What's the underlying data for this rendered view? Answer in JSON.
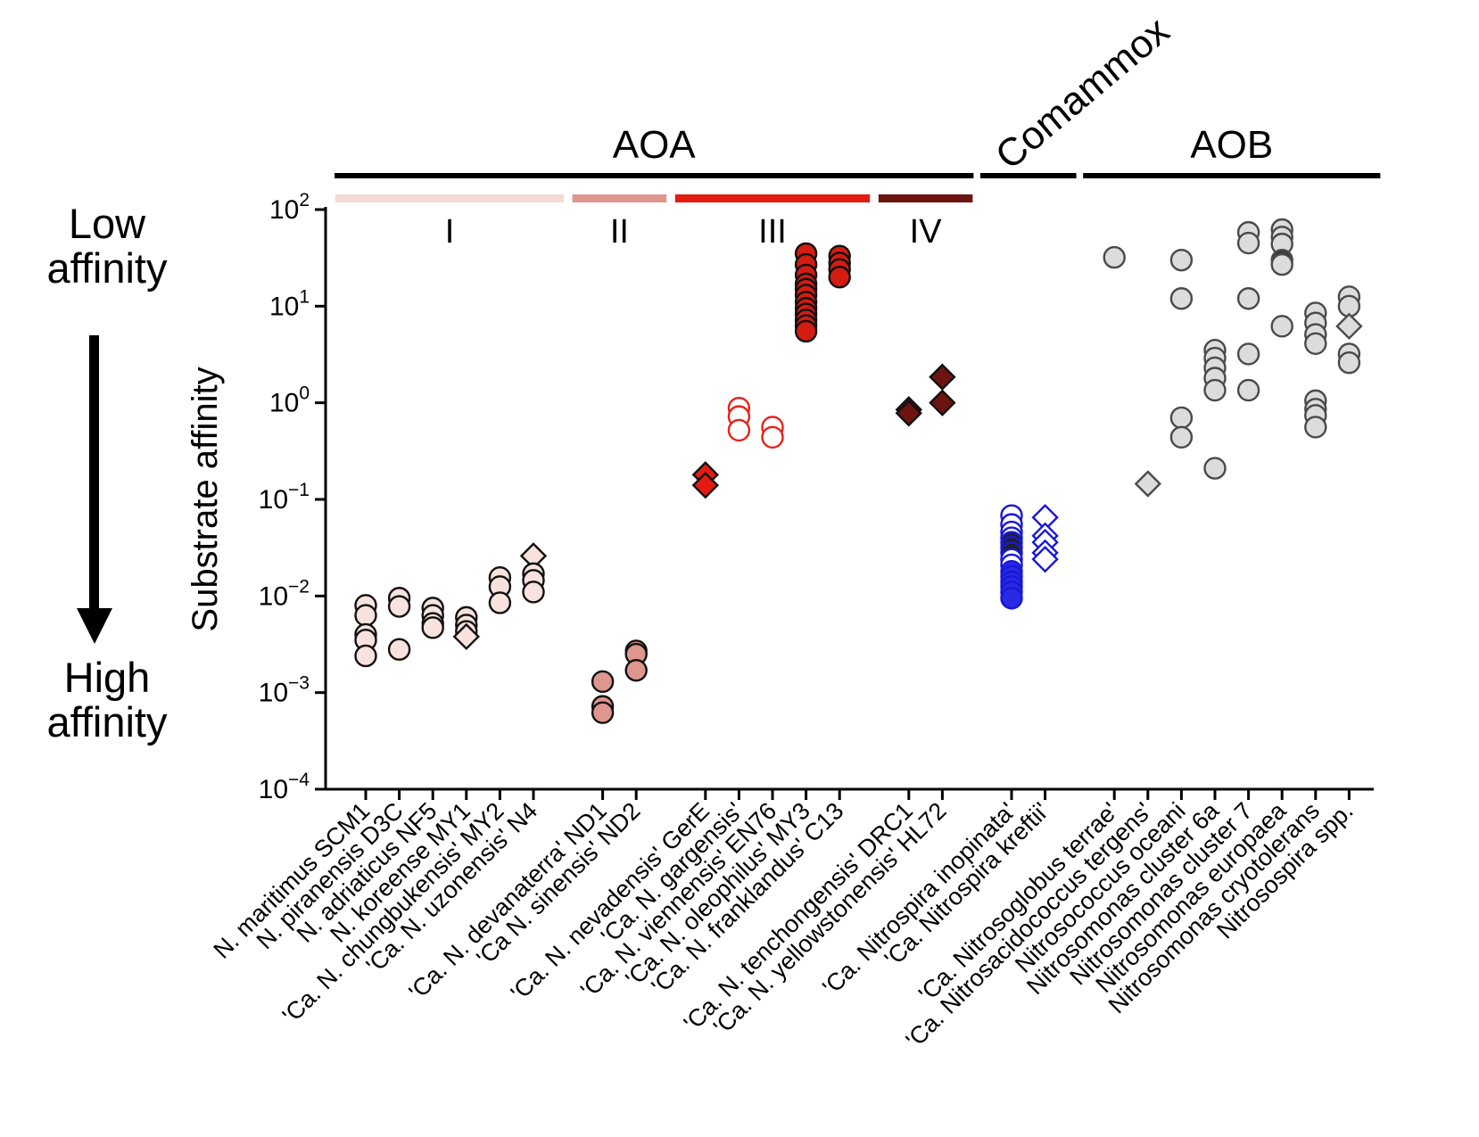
{
  "labels": {
    "low_affinity": "Low\naffinity",
    "high_affinity": "High\naffinity"
  },
  "chart_data": {
    "type": "scatter",
    "y_axis": {
      "label": "Substrate affinity",
      "log_min": -4,
      "log_max": 2,
      "tick_exponents": [
        2,
        1,
        0,
        -1,
        -2,
        -3,
        -4
      ]
    },
    "groups": [
      {
        "label": "AOA",
        "rotated_title": false,
        "clades": [
          {
            "label": "I",
            "bar_color": "#f4d9d5",
            "species": [
              {
                "label": "N. maritimus SCM1",
                "marker": {
                  "shape": "circle",
                  "fill": "#f7e2de",
                  "stroke": "#111111"
                },
                "points": [
                  {
                    "v": 0.008
                  },
                  {
                    "v": 0.0063
                  },
                  {
                    "v": 0.004
                  },
                  {
                    "v": 0.0035
                  },
                  {
                    "v": 0.0024
                  }
                ]
              },
              {
                "label": "N. piranensis D3C",
                "marker": {
                  "shape": "circle",
                  "fill": "#f7e2de",
                  "stroke": "#111111"
                },
                "points": [
                  {
                    "v": 0.0095
                  },
                  {
                    "v": 0.0078
                  },
                  {
                    "v": 0.0028
                  }
                ]
              },
              {
                "label": "N. adriaticus NF5",
                "marker": {
                  "shape": "circle",
                  "fill": "#f7e2de",
                  "stroke": "#111111"
                },
                "points": [
                  {
                    "v": 0.0075
                  },
                  {
                    "v": 0.0063
                  },
                  {
                    "v": 0.0052
                  },
                  {
                    "v": 0.0047
                  }
                ]
              },
              {
                "label": "N. koreense MY1",
                "marker": {
                  "shape": "circle",
                  "fill": "#f7e2de",
                  "stroke": "#111111"
                },
                "points": [
                  {
                    "v": 0.006
                  },
                  {
                    "v": 0.005
                  },
                  {
                    "v": 0.0043
                  },
                  {
                    "v": 0.0038,
                    "shape": "diamond"
                  }
                ]
              },
              {
                "label": "'Ca. N. chungbukensis' MY2",
                "marker": {
                  "shape": "circle",
                  "fill": "#f7e2de",
                  "stroke": "#111111"
                },
                "points": [
                  {
                    "v": 0.0155
                  },
                  {
                    "v": 0.0125
                  },
                  {
                    "v": 0.0085
                  }
                ]
              },
              {
                "label": "'Ca. N. uzonensis' N4",
                "marker": {
                  "shape": "circle",
                  "fill": "#f7e2de",
                  "stroke": "#111111"
                },
                "points": [
                  {
                    "v": 0.026,
                    "shape": "diamond"
                  },
                  {
                    "v": 0.017
                  },
                  {
                    "v": 0.0145
                  },
                  {
                    "v": 0.011
                  }
                ]
              }
            ]
          },
          {
            "label": "II",
            "bar_color": "#de968f",
            "species": [
              {
                "label": "'Ca. N. devanaterra' ND1",
                "marker": {
                  "shape": "circle",
                  "fill": "#de968f",
                  "stroke": "#111111"
                },
                "points": [
                  {
                    "v": 0.0013
                  },
                  {
                    "v": 0.00072
                  },
                  {
                    "v": 0.00062
                  }
                ]
              },
              {
                "label": "'Ca N. sinensis' ND2",
                "marker": {
                  "shape": "circle",
                  "fill": "#de968f",
                  "stroke": "#111111"
                },
                "points": [
                  {
                    "v": 0.0027
                  },
                  {
                    "v": 0.0025
                  },
                  {
                    "v": 0.0017
                  }
                ]
              }
            ]
          },
          {
            "label": "III",
            "bar_color": "#e31b10",
            "species": [
              {
                "label": "'Ca. N. nevadensis' GerE",
                "marker": {
                  "shape": "diamond",
                  "fill": "#e31b10",
                  "stroke": "#111111"
                },
                "points": [
                  {
                    "v": 0.18
                  },
                  {
                    "v": 0.14
                  }
                ]
              },
              {
                "label": "'Ca. N. gargensis'",
                "marker": {
                  "shape": "circle",
                  "fill": "#ffffff",
                  "stroke": "#e3231a"
                },
                "points": [
                  {
                    "v": 0.88
                  },
                  {
                    "v": 0.72
                  },
                  {
                    "v": 0.52
                  }
                ]
              },
              {
                "label": "'Ca. N. viennensis' EN76",
                "marker": {
                  "shape": "circle",
                  "fill": "#ffffff",
                  "stroke": "#e3231a"
                },
                "points": [
                  {
                    "v": 0.56
                  },
                  {
                    "v": 0.44
                  }
                ]
              },
              {
                "label": "'Ca. N. oleophilus' MY3",
                "marker": {
                  "shape": "circle",
                  "fill": "#d41c11",
                  "stroke": "#111111"
                },
                "points": [
                  {
                    "v": 35
                  },
                  {
                    "v": 27
                  },
                  {
                    "v": 21
                  },
                  {
                    "v": 17
                  },
                  {
                    "v": 15
                  },
                  {
                    "v": 13
                  },
                  {
                    "v": 11
                  },
                  {
                    "v": 9.5
                  },
                  {
                    "v": 8.3
                  },
                  {
                    "v": 7.2
                  },
                  {
                    "v": 6.3
                  },
                  {
                    "v": 5.5
                  }
                ]
              },
              {
                "label": "'Ca. N. franklandus' C13",
                "marker": {
                  "shape": "circle",
                  "fill": "#d41c11",
                  "stroke": "#111111"
                },
                "points": [
                  {
                    "v": 33
                  },
                  {
                    "v": 28
                  },
                  {
                    "v": 24
                  },
                  {
                    "v": 20
                  }
                ]
              }
            ]
          },
          {
            "label": "IV",
            "bar_color": "#6e1410",
            "species": [
              {
                "label": "'Ca. N. tenchongensis' DRC1",
                "marker": {
                  "shape": "diamond",
                  "fill": "#6e1410",
                  "stroke": "#111111"
                },
                "points": [
                  {
                    "v": 0.85
                  },
                  {
                    "v": 0.78
                  }
                ]
              },
              {
                "label": "'Ca. N. yellowstonensis' HL72",
                "marker": {
                  "shape": "diamond",
                  "fill": "#6e1410",
                  "stroke": "#111111"
                },
                "points": [
                  {
                    "v": 1.85
                  },
                  {
                    "v": 1.0
                  }
                ]
              }
            ]
          }
        ]
      },
      {
        "label": "Comammox",
        "rotated_title": true,
        "clades": [
          {
            "label": "",
            "bar_color": null,
            "species": [
              {
                "label": "'Ca. Nitrospira inopinata'",
                "marker": {
                  "shape": "circle",
                  "fill": "#ffffff",
                  "stroke": "#1717dd"
                },
                "points": [
                  {
                    "v": 0.068
                  },
                  {
                    "v": 0.055
                  },
                  {
                    "v": 0.046
                  },
                  {
                    "v": 0.04
                  },
                  {
                    "v": 0.036,
                    "fill": "#222222"
                  },
                  {
                    "v": 0.032,
                    "fill": "#222222"
                  },
                  {
                    "v": 0.028,
                    "fill": "#222222"
                  },
                  {
                    "v": 0.024
                  },
                  {
                    "v": 0.021
                  },
                  {
                    "v": 0.018,
                    "fill": "#2a2ae2"
                  },
                  {
                    "v": 0.016,
                    "fill": "#2a2ae2"
                  },
                  {
                    "v": 0.014,
                    "fill": "#2a2ae2"
                  },
                  {
                    "v": 0.0125,
                    "fill": "#2a2ae2"
                  },
                  {
                    "v": 0.011,
                    "fill": "#2a2ae2"
                  },
                  {
                    "v": 0.0095,
                    "fill": "#2a2ae2"
                  }
                ]
              },
              {
                "label": "'Ca. Nitrospira kreftii'",
                "marker": {
                  "shape": "diamond",
                  "fill": "#ffffff",
                  "stroke": "#1717dd"
                },
                "points": [
                  {
                    "v": 0.065
                  },
                  {
                    "v": 0.042
                  },
                  {
                    "v": 0.036
                  },
                  {
                    "v": 0.028
                  },
                  {
                    "v": 0.024
                  }
                ]
              }
            ]
          }
        ]
      },
      {
        "label": "AOB",
        "rotated_title": false,
        "clades": [
          {
            "label": "",
            "bar_color": null,
            "species": [
              {
                "label": "'Ca. Nitrosoglobus terrae'",
                "marker": {
                  "shape": "circle",
                  "fill": "#dcdcdc",
                  "stroke": "#4a4a4a"
                },
                "points": [
                  {
                    "v": 32
                  }
                ]
              },
              {
                "label": "'Ca. Nitrosacidococcus tergens'",
                "marker": {
                  "shape": "diamond",
                  "fill": "#dcdcdc",
                  "stroke": "#4a4a4a"
                },
                "points": [
                  {
                    "v": 0.145
                  }
                ]
              },
              {
                "label": "Nitrosococcus oceani",
                "marker": {
                  "shape": "circle",
                  "fill": "#dcdcdc",
                  "stroke": "#4a4a4a"
                },
                "points": [
                  {
                    "v": 30
                  },
                  {
                    "v": 12
                  },
                  {
                    "v": 0.7
                  },
                  {
                    "v": 0.44
                  }
                ]
              },
              {
                "label": "Nitrosomonas cluster 6a",
                "marker": {
                  "shape": "circle",
                  "fill": "#dcdcdc",
                  "stroke": "#4a4a4a"
                },
                "points": [
                  {
                    "v": 3.5
                  },
                  {
                    "v": 2.9
                  },
                  {
                    "v": 2.3
                  },
                  {
                    "v": 1.8
                  },
                  {
                    "v": 1.35
                  },
                  {
                    "v": 0.21
                  }
                ]
              },
              {
                "label": "Nitrosomonas cluster 7",
                "marker": {
                  "shape": "circle",
                  "fill": "#dcdcdc",
                  "stroke": "#4a4a4a"
                },
                "points": [
                  {
                    "v": 58
                  },
                  {
                    "v": 45
                  },
                  {
                    "v": 12
                  },
                  {
                    "v": 3.2
                  },
                  {
                    "v": 1.35
                  }
                ]
              },
              {
                "label": "Nitrosomonas europaea",
                "marker": {
                  "shape": "circle",
                  "fill": "#dcdcdc",
                  "stroke": "#4a4a4a"
                },
                "points": [
                  {
                    "v": 62
                  },
                  {
                    "v": 52
                  },
                  {
                    "v": 44
                  },
                  {
                    "v": 30,
                    "fill": "#3a3a3a"
                  },
                  {
                    "v": 27
                  },
                  {
                    "v": 6.2
                  }
                ]
              },
              {
                "label": "Nitrosomonas cryotolerans",
                "marker": {
                  "shape": "circle",
                  "fill": "#dcdcdc",
                  "stroke": "#4a4a4a"
                },
                "points": [
                  {
                    "v": 8.5
                  },
                  {
                    "v": 6.7
                  },
                  {
                    "v": 5.1
                  },
                  {
                    "v": 4.1
                  },
                  {
                    "v": 1.05
                  },
                  {
                    "v": 0.86
                  },
                  {
                    "v": 0.74
                  },
                  {
                    "v": 0.56
                  }
                ]
              },
              {
                "label": "Nitrosospira spp.",
                "marker": {
                  "shape": "circle",
                  "fill": "#dcdcdc",
                  "stroke": "#4a4a4a"
                },
                "points": [
                  {
                    "v": 12.5
                  },
                  {
                    "v": 10
                  },
                  {
                    "v": 6.2,
                    "shape": "diamond"
                  },
                  {
                    "v": 3.2
                  },
                  {
                    "v": 2.6
                  }
                ]
              }
            ]
          }
        ]
      }
    ]
  }
}
